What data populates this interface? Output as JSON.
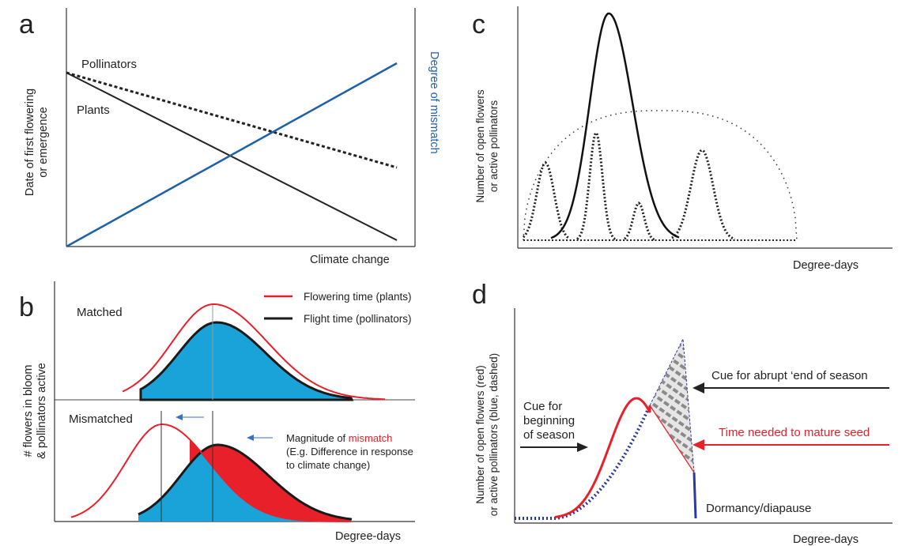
{
  "panels": {
    "a": {
      "letter": "a",
      "y_label_line1": "Date of first flowering",
      "y_label_line2": "or emergence",
      "right_label": "Degree of mismatch",
      "x_label": "Climate change",
      "series": {
        "pollinators": "Pollinators",
        "plants": "Plants"
      },
      "colors": {
        "mismatch": "#1f5fa8"
      }
    },
    "b": {
      "letter": "b",
      "y_label_line1": "# flowers in bloom",
      "y_label_line2": "& pollinators active",
      "matched_label": "Matched",
      "mismatched_label": "Mismatched",
      "legend": {
        "flowering": "Flowering time (plants)",
        "flight": "Flight time (pollinators)"
      },
      "note_prefix": "Magnitude of ",
      "note_highlight": "mismatch",
      "note_line2": "(E.g. Difference in response",
      "note_line3": "to climate change)",
      "x_label": "Degree-days",
      "colors": {
        "flowering": "#e8202a",
        "flight_fill": "#1aa3d9",
        "mismatch_fill": "#e8202a"
      }
    },
    "c": {
      "letter": "c",
      "y_label_line1": "Number of open flowers",
      "y_label_line2": "or active pollinators",
      "x_label": "Degree-days"
    },
    "d": {
      "letter": "d",
      "y_label_line1": "Number of open flowers (red)",
      "y_label_line2": "or active pollinators (blue, dashed)",
      "cue_begin_line1": "Cue for",
      "cue_begin_line2": "beginning",
      "cue_begin_line3": "of season",
      "cue_end": "Cue for abrupt ‘end of season",
      "time_seed": "Time needed to mature seed",
      "dormancy": "Dormancy/diapause",
      "x_label": "Degree-days",
      "colors": {
        "flowers": "#e8202a",
        "pollinators": "#2b3a9c"
      }
    }
  }
}
